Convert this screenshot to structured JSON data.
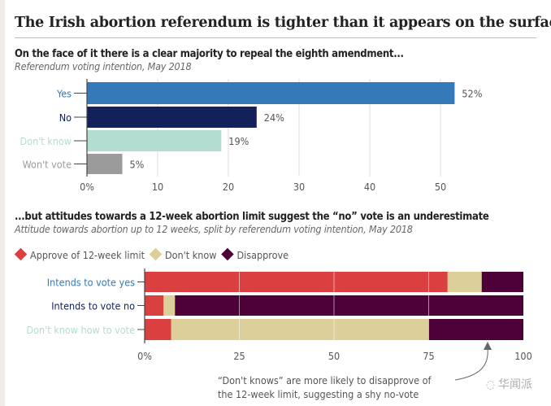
{
  "title": "The Irish abortion referendum is tighter than it appears on the surface",
  "chart_data": [
    {
      "type": "bar",
      "orientation": "horizontal",
      "title": "On the face of it there is a clear majority to repeal the eighth amendment...",
      "subtitle": "Referendum voting intention, May 2018",
      "categories": [
        "Yes",
        "No",
        "Don't know",
        "Won't vote"
      ],
      "values": [
        52,
        24,
        19,
        5
      ],
      "data_labels": [
        "52%",
        "24%",
        "19%",
        "5%"
      ],
      "colors": [
        "#3579b8",
        "#13215a",
        "#b2ddd0",
        "#9b9b9b"
      ],
      "xlim": [
        0,
        55
      ],
      "xticks": [
        0,
        10,
        20,
        30,
        40,
        50
      ],
      "xtick_labels": [
        "0%",
        "10",
        "20",
        "30",
        "40",
        "50"
      ],
      "grid": true
    },
    {
      "type": "bar",
      "orientation": "horizontal",
      "stacked": true,
      "title": "...but attitudes towards a 12-week abortion limit suggest the “no” vote is an underestimate",
      "subtitle": "Attitude towards abortion up to 12 weeks, split by referendum voting intention, May 2018",
      "categories": [
        "Intends to vote yes",
        "Intends to vote no",
        "Don't know how to vote"
      ],
      "category_colors": [
        "#3579b8",
        "#13215a",
        "#b2ddd0"
      ],
      "series": [
        {
          "name": "Approve of 12-week limit",
          "color": "#d9403f",
          "values": [
            80,
            5,
            7
          ]
        },
        {
          "name": "Don't know",
          "color": "#dccf99",
          "values": [
            9,
            3,
            68
          ]
        },
        {
          "name": "Disapprove",
          "color": "#4e0138",
          "values": [
            11,
            92,
            25
          ]
        }
      ],
      "xlim": [
        0,
        100
      ],
      "xticks": [
        0,
        25,
        50,
        75,
        100
      ],
      "xtick_labels": [
        "0%",
        "25",
        "50",
        "75",
        "100"
      ],
      "legend": "top-left",
      "grid": true,
      "annotation": [
        "“Don't knows” are more likely to disapprove of",
        "the 12-week limit, suggesting a shy no-vote"
      ]
    }
  ],
  "watermark": "华闻派"
}
